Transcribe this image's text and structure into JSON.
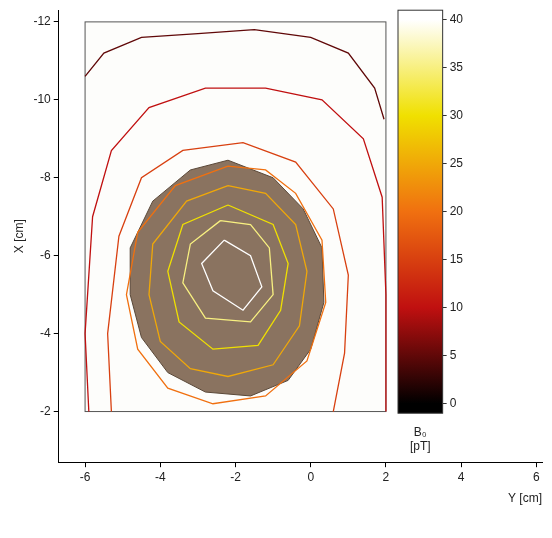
{
  "chart_data": {
    "type": "contour",
    "xlabel": "Y [cm]",
    "ylabel": "X [cm]",
    "xlim": [
      -6.7,
      6.15
    ],
    "xticks": [
      -6,
      -4,
      -2,
      0,
      2,
      4,
      6
    ],
    "ylim": [
      -0.7,
      -12.3
    ],
    "yticks": [
      -12,
      -10,
      -8,
      -6,
      -4,
      -2
    ],
    "image_extent": {
      "x": [
        -6,
        2
      ],
      "y": [
        -12,
        -2
      ]
    },
    "sample_outline": {
      "x": [
        -2.2,
        -3.2,
        -4.2,
        -4.8,
        -4.8,
        -4.5,
        -3.8,
        -2.8,
        -1.6,
        -0.6,
        0,
        0.35,
        0.3,
        -0.2,
        -1,
        -2.2
      ],
      "y": [
        -8.45,
        -8.2,
        -7.4,
        -6.2,
        -5,
        -3.9,
        -3,
        -2.5,
        -2.4,
        -2.8,
        -3.6,
        -4.8,
        -6.2,
        -7.2,
        -8,
        -8.45
      ]
    },
    "series": [
      {
        "level": 5,
        "x": [
          -6,
          -5.5,
          -4.5,
          -3,
          -1.5,
          0,
          1,
          1.7,
          1.95
        ],
        "y": [
          -10.6,
          -11.2,
          -11.6,
          -11.7,
          -11.8,
          -11.6,
          -11.2,
          -10.3,
          -9.5
        ]
      },
      {
        "level": 10,
        "x": [
          -5.9,
          -6,
          -5.8,
          -5.3,
          -4.3,
          -2.8,
          -1.2,
          0.3,
          1.4,
          1.9,
          2,
          2
        ],
        "y": [
          -2,
          -4,
          -7,
          -8.7,
          -9.8,
          -10.3,
          -10.3,
          -10,
          -9,
          -7.5,
          -5,
          -2
        ]
      },
      {
        "level": 15,
        "x": [
          -5.3,
          -5.4,
          -5.1,
          -4.5,
          -3.4,
          -1.8,
          -0.4,
          0.6,
          1,
          0.9,
          0.6
        ],
        "y": [
          -2,
          -4,
          -6.5,
          -8,
          -8.7,
          -8.9,
          -8.4,
          -7.2,
          -5.5,
          -3.5,
          -2
        ]
      },
      {
        "level": 20,
        "x": [
          -2.2,
          -3.6,
          -4.6,
          -4.9,
          -4.6,
          -3.8,
          -2.6,
          -1.2,
          -0.1,
          0.4,
          0.3,
          -0.4,
          -1.2,
          -2.2
        ],
        "y": [
          -8.3,
          -7.8,
          -6.6,
          -5,
          -3.6,
          -2.6,
          -2.2,
          -2.4,
          -3.3,
          -4.8,
          -6.4,
          -7.6,
          -8.2,
          -8.3
        ]
      },
      {
        "level": 25,
        "x": [
          -2.2,
          -3.3,
          -4.2,
          -4.3,
          -4,
          -3.2,
          -2.2,
          -1,
          -0.3,
          -0.1,
          -0.4,
          -1.2,
          -2.2
        ],
        "y": [
          -7.8,
          -7.4,
          -6.3,
          -5,
          -3.8,
          -3.1,
          -2.9,
          -3.2,
          -4.2,
          -5.6,
          -6.8,
          -7.6,
          -7.8
        ]
      },
      {
        "level": 30,
        "x": [
          -2.2,
          -3.4,
          -3.8,
          -3.5,
          -2.6,
          -1.4,
          -0.8,
          -0.6,
          -1,
          -2.2
        ],
        "y": [
          -7.3,
          -6.8,
          -5.6,
          -4.3,
          -3.6,
          -3.7,
          -4.6,
          -5.8,
          -6.8,
          -7.3
        ]
      },
      {
        "level": 35,
        "x": [
          -2.4,
          -3.2,
          -3.4,
          -2.8,
          -1.6,
          -1,
          -1.1,
          -1.6,
          -2.4
        ],
        "y": [
          -6.9,
          -6.3,
          -5.3,
          -4.4,
          -4.3,
          -5,
          -6.2,
          -6.8,
          -6.9
        ]
      },
      {
        "level": 40,
        "x": [
          -2.3,
          -2.9,
          -2.6,
          -1.8,
          -1.3,
          -1.6,
          -2.3
        ],
        "y": [
          -6.4,
          -5.8,
          -5.1,
          -4.6,
          -5.2,
          -6,
          -6.4
        ]
      }
    ],
    "colorbar": {
      "label": "B₀ [pT]",
      "range": [
        -1,
        41
      ],
      "ticks": [
        0,
        5,
        10,
        15,
        20,
        25,
        30,
        35,
        40
      ]
    }
  }
}
